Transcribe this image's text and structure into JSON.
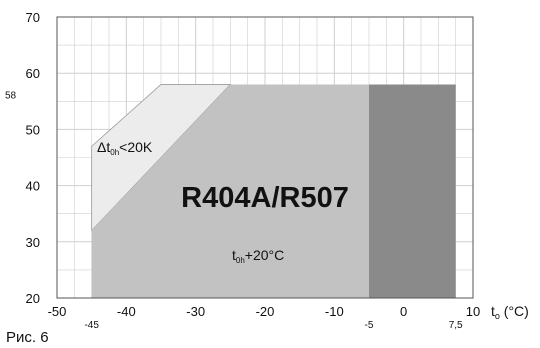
{
  "caption": "Рис. 6",
  "chart_data": {
    "type": "area",
    "xlabel": "t",
    "xlabel_sub": "o",
    "xunit": "(°C)",
    "xlim": [
      -50,
      10
    ],
    "ylim": [
      20,
      70
    ],
    "grid": true,
    "x_ticks": [
      -50,
      -40,
      -30,
      -20,
      -10,
      0,
      10
    ],
    "y_ticks": [
      20,
      30,
      40,
      50,
      60,
      70
    ],
    "extra_x_ticks": [
      -45,
      -5,
      7.5
    ],
    "extra_x_tick_labels": [
      "-45",
      "-5",
      "7,5"
    ],
    "extra_y_ticks": [
      58
    ],
    "extra_y_tick_labels": [
      "58"
    ],
    "colors": {
      "light": "#ececec",
      "medium": "#c2c2c2",
      "dark": "#8a8a8a",
      "grid": "#cfcfcf"
    },
    "regions": [
      {
        "name": "light",
        "polygon": [
          [
            -45,
            32
          ],
          [
            -45,
            47
          ],
          [
            -35,
            58
          ],
          [
            -25,
            58
          ]
        ]
      },
      {
        "name": "medium",
        "polygon": [
          [
            -45,
            20
          ],
          [
            -45,
            32
          ],
          [
            -25,
            58
          ],
          [
            -5,
            58
          ],
          [
            -5,
            20
          ]
        ]
      },
      {
        "name": "dark",
        "polygon": [
          [
            -5,
            20
          ],
          [
            -5,
            58
          ],
          [
            7.5,
            58
          ],
          [
            7.5,
            20
          ]
        ]
      }
    ],
    "annotations": {
      "refrigerant": "R404A/R507",
      "superheat_prefix": "Δt",
      "superheat_sub": "0h",
      "superheat_suffix": "<20K",
      "gas_prefix": "t",
      "gas_sub": "0h",
      "gas_suffix": "+20°C"
    }
  }
}
